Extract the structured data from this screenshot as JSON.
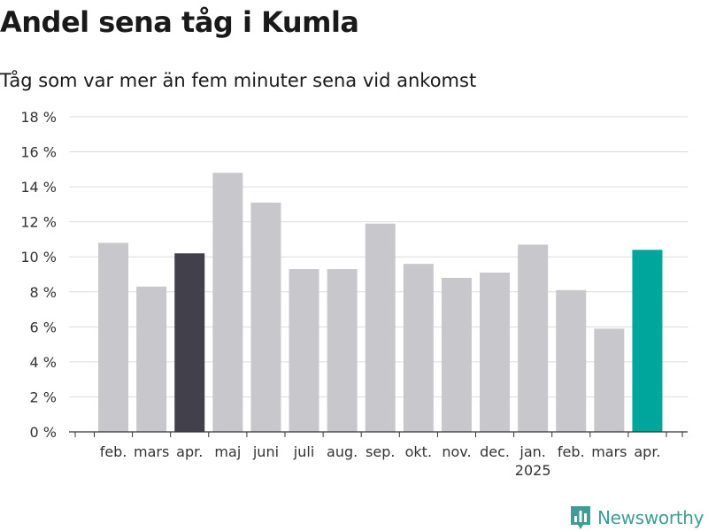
{
  "brand": {
    "name": "Newsworthy",
    "icon": "newsworthy-logo-icon",
    "color": "#3d9e95"
  },
  "chart_data": {
    "type": "bar",
    "title": "Andel sena tåg i Kumla",
    "subtitle": "Tåg som var mer än fem minuter sena vid ankomst",
    "xlabel": "",
    "ylabel": "",
    "ylim": [
      0,
      18
    ],
    "y_ticks": [
      0,
      2,
      4,
      6,
      8,
      10,
      12,
      14,
      16,
      18
    ],
    "y_tick_labels": [
      "0 %",
      "2 %",
      "4 %",
      "6 %",
      "8 %",
      "10 %",
      "12 %",
      "14 %",
      "16 %",
      "18 %"
    ],
    "grid": true,
    "categories": [
      "feb.",
      "mars",
      "apr.",
      "maj",
      "juni",
      "juli",
      "aug.",
      "sep.",
      "okt.",
      "nov.",
      "dec.",
      "jan.",
      "feb.",
      "mars",
      "apr."
    ],
    "year_labels": [
      {
        "index": 11,
        "label": "2025"
      }
    ],
    "values": [
      10.8,
      8.3,
      10.2,
      14.8,
      13.1,
      9.3,
      9.3,
      11.9,
      9.6,
      8.8,
      9.1,
      10.7,
      8.1,
      5.9,
      10.4
    ],
    "colors": [
      "#c8c7cc",
      "#c8c7cc",
      "#42404a",
      "#c8c7cc",
      "#c8c7cc",
      "#c8c7cc",
      "#c8c7cc",
      "#c8c7cc",
      "#c8c7cc",
      "#c8c7cc",
      "#c8c7cc",
      "#c8c7cc",
      "#c8c7cc",
      "#c8c7cc",
      "#00a59b"
    ]
  }
}
